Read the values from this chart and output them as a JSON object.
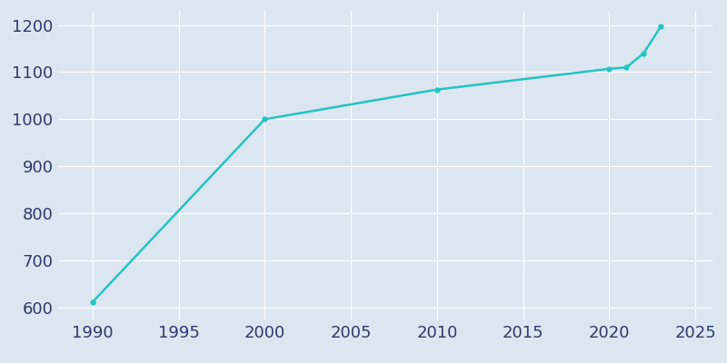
{
  "years": [
    1990,
    2000,
    2010,
    2020,
    2021,
    2022,
    2023
  ],
  "population": [
    612,
    1000,
    1063,
    1107,
    1110,
    1140,
    1197
  ],
  "line_color": "#22c4c4",
  "marker_color": "#22c4c4",
  "fig_bg_color": "#dce6f0",
  "plot_bg_color": "#dce6f0",
  "grid_color": "#ffffff",
  "tick_color": "#2d3a6b",
  "xlim": [
    1988,
    2026
  ],
  "ylim": [
    575,
    1230
  ],
  "xticks": [
    1990,
    1995,
    2000,
    2005,
    2010,
    2015,
    2020,
    2025
  ],
  "yticks": [
    600,
    700,
    800,
    900,
    1000,
    1100,
    1200
  ],
  "tick_fontsize": 13,
  "linewidth": 1.8
}
